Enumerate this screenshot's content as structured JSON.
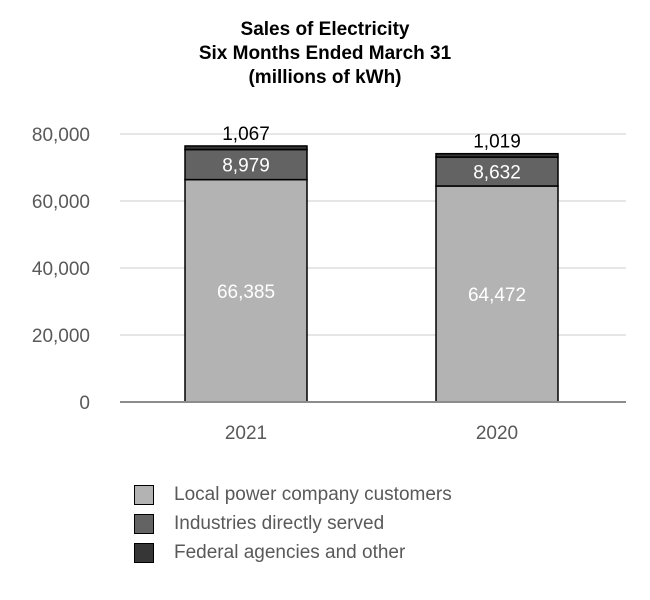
{
  "title_lines": [
    "Sales of Electricity",
    "Six Months Ended March 31",
    "(millions of kWh)"
  ],
  "chart_data": {
    "type": "bar",
    "stacked": true,
    "categories": [
      "2021",
      "2020"
    ],
    "series": [
      {
        "name": "Local power company customers",
        "values": [
          66385,
          64472
        ],
        "color": "#b3b3b3",
        "labels": [
          "66,385",
          "64,472"
        ],
        "label_color": "#ffffff"
      },
      {
        "name": "Industries directly served",
        "values": [
          8979,
          8632
        ],
        "color": "#636363",
        "labels": [
          "8,979",
          "8,632"
        ],
        "label_color": "#ffffff"
      },
      {
        "name": "Federal agencies and other",
        "values": [
          1067,
          1019
        ],
        "color": "#363636",
        "labels": [
          "1,067",
          "1,019"
        ],
        "label_color": "#000000"
      }
    ],
    "ylim": [
      0,
      80000
    ],
    "yticks": [
      0,
      20000,
      40000,
      60000,
      80000
    ],
    "ytick_labels": [
      "0",
      "20,000",
      "40,000",
      "60,000",
      "80,000"
    ],
    "grid": true,
    "legend_position": "bottom"
  }
}
